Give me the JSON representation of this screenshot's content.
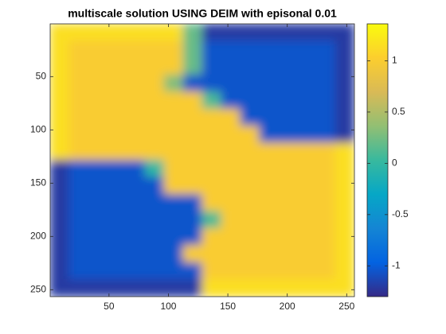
{
  "chart_data": {
    "type": "heatmap",
    "title": "multiscale solution USING DEIM with episonal 0.01",
    "xlim": [
      0.5,
      256.5
    ],
    "xticks": [
      50,
      100,
      150,
      200,
      250
    ],
    "ylim": [
      0.5,
      256.5
    ],
    "yticks": [
      50,
      100,
      150,
      200,
      250
    ],
    "y_direction": "reverse",
    "clim": [
      -1.3,
      1.36
    ],
    "cticks": [
      -1,
      -0.5,
      0,
      0.5,
      1
    ],
    "colormap": [
      "#352a87",
      "#0363e1",
      "#1485d4",
      "#06a7c6",
      "#38b99e",
      "#92bf73",
      "#d9ba56",
      "#fcce2e",
      "#f9fb0e"
    ],
    "z": [
      [
        1.15,
        1.15,
        1.15,
        1.15,
        1.15,
        1.15,
        1.15,
        0.2,
        -1.2,
        -1.2,
        -1.2,
        -1.2,
        -1.2,
        -1.2,
        -1.2,
        -1.2
      ],
      [
        1.15,
        1,
        1,
        1,
        1,
        1,
        1,
        0.2,
        -1.05,
        -1.05,
        -1.05,
        -1.05,
        -1.05,
        -1.05,
        -1.05,
        -1.2
      ],
      [
        1.15,
        1,
        1,
        1,
        1,
        1,
        1,
        0.2,
        -1.05,
        -1.05,
        -1.05,
        -1.05,
        -1.05,
        -1.05,
        -1.05,
        -1.2
      ],
      [
        1.15,
        1,
        1,
        1,
        1,
        1,
        0.3,
        -1.05,
        -1.05,
        -1.05,
        -1.05,
        -1.05,
        -1.05,
        -1.05,
        -1.05,
        -1.2
      ],
      [
        1.15,
        1,
        1,
        1,
        1,
        1,
        1,
        1,
        0.1,
        -1.05,
        -1.05,
        -1.05,
        -1.05,
        -1.05,
        -1.05,
        -1.2
      ],
      [
        1.15,
        1,
        1,
        1,
        1,
        1,
        1,
        1,
        1,
        1,
        -1.05,
        -1.05,
        -1.05,
        -1.05,
        -1.05,
        -1.2
      ],
      [
        1.15,
        1,
        1,
        1,
        1,
        1,
        1,
        1,
        1,
        1,
        1,
        -1.05,
        -1.05,
        -1.05,
        -1.05,
        -1.2
      ],
      [
        1.15,
        1,
        1,
        1,
        1,
        1,
        1,
        1,
        1,
        1,
        1,
        1,
        1,
        1,
        1,
        1.15
      ],
      [
        -1.2,
        -1.05,
        -1.05,
        -1.05,
        -1.05,
        0,
        1,
        1,
        1,
        1,
        1,
        1,
        1,
        1,
        1,
        1.15
      ],
      [
        -1.2,
        -1.05,
        -1.05,
        -1.05,
        -1.05,
        -1.05,
        1,
        1,
        1,
        1,
        1,
        1,
        1,
        1,
        1,
        1.15
      ],
      [
        -1.2,
        -1.05,
        -1.05,
        -1.05,
        -1.05,
        -1.05,
        -1.05,
        -1.05,
        1,
        1,
        1,
        1,
        1,
        1,
        1,
        1.15
      ],
      [
        -1.2,
        -1.05,
        -1.05,
        -1.05,
        -1.05,
        -1.05,
        -1.05,
        -1.05,
        0.1,
        1,
        1,
        1,
        1,
        1,
        1,
        1.15
      ],
      [
        -1.2,
        -1.05,
        -1.05,
        -1.05,
        -1.05,
        -1.05,
        -1.05,
        -1.05,
        1,
        1,
        1,
        1,
        1,
        1,
        1,
        1.15
      ],
      [
        -1.2,
        -1.05,
        -1.05,
        -1.05,
        -1.05,
        -1.05,
        -1.05,
        1,
        1,
        1,
        1,
        1,
        1,
        1,
        1,
        1.15
      ],
      [
        -1.2,
        -1.05,
        -1.05,
        -1.05,
        -1.05,
        -1.05,
        -1.05,
        -1.05,
        1,
        1,
        1,
        1,
        1,
        1,
        1,
        1.15
      ],
      [
        -1.2,
        -1.2,
        -1.2,
        -1.2,
        -1.2,
        -1.2,
        -1.2,
        -1.2,
        1.15,
        1.15,
        1.15,
        1.15,
        1.15,
        1.15,
        1.15,
        1.15
      ]
    ]
  }
}
